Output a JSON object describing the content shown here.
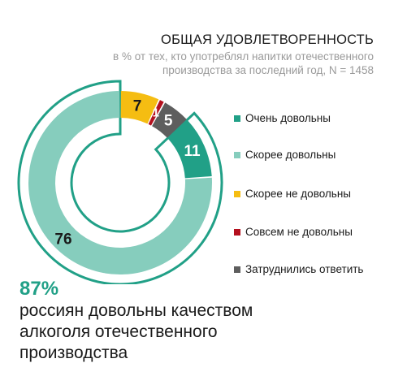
{
  "title": "ОБЩАЯ УДОВЛЕТВОРЕННОСТЬ",
  "subtitle": "в % от тех, кто употреблял напитки отечественного производства за последний год, N = 1458",
  "chart_data": {
    "type": "pie",
    "title": "ОБЩАЯ УДОВЛЕТВОРЕННОСТЬ",
    "subtitle": "в % от тех, кто употреблял напитки отечественного производства за последний год, N = 1458",
    "categories": [
      "Очень довольны",
      "Скорее довольны",
      "Скорее не довольны",
      "Совсем не довольны",
      "Затруднились ответить"
    ],
    "values": [
      11,
      76,
      7,
      1,
      5
    ],
    "colors": [
      "#21a087",
      "#86cdbd",
      "#f5bd12",
      "#b4101e",
      "#5e5e5e"
    ],
    "labels": [
      "11",
      "76",
      "7",
      "1",
      "5"
    ],
    "label_colors": [
      "#ffffff",
      "#1a1a1a",
      "#1a1a1a",
      "#ffffff",
      "#ffffff"
    ],
    "legend_position": "right"
  },
  "highlight": {
    "value": "87%",
    "text": "россиян довольны качеством алкоголя отечественного производства"
  }
}
